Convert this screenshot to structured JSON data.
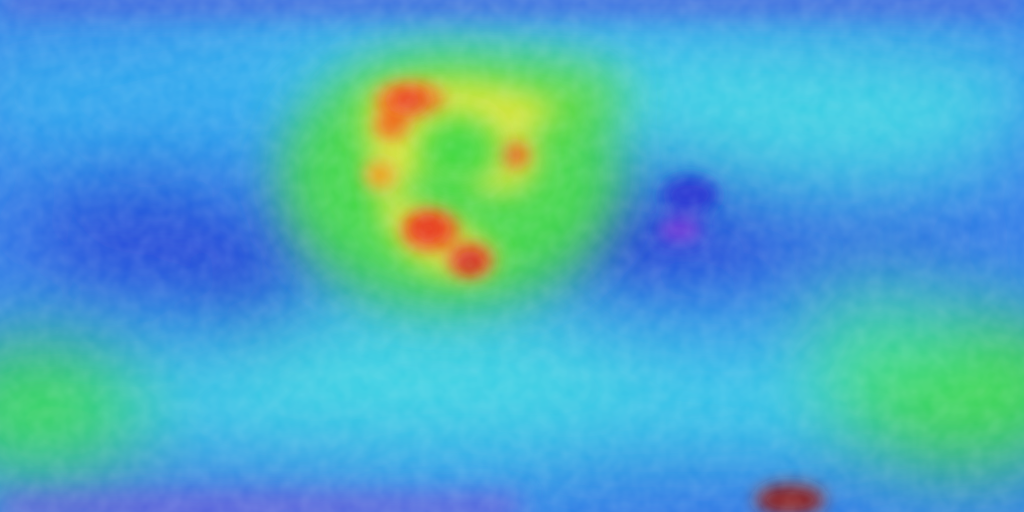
{
  "map": {
    "projection": "equirectangular",
    "colormap": "rainbow",
    "palette": {
      "violet": "#5a2bd8",
      "deep_blue": "#1a2fd6",
      "blue": "#2a6fe6",
      "light_blue": "#2aa9ee",
      "cyan": "#33d6e6",
      "green": "#3fdc3a",
      "yellow": "#e8e83a",
      "orange": "#f08a1a",
      "red": "#e8321a",
      "dark_red": "#8a1a1a"
    },
    "regions": [
      {
        "id": "equatorial-blue-band",
        "level": "blue"
      },
      {
        "id": "northern-cyan-belt",
        "level": "cyan"
      },
      {
        "id": "southern-cyan-belt",
        "level": "cyan"
      },
      {
        "id": "central-high-anomaly",
        "level": "red"
      },
      {
        "id": "eastern-low-basin",
        "level": "deep_blue"
      },
      {
        "id": "western-low-basin",
        "level": "deep_blue"
      },
      {
        "id": "southwest-green-patch",
        "level": "green"
      },
      {
        "id": "southeast-green-patch",
        "level": "green"
      },
      {
        "id": "south-pole-dark-spot",
        "level": "dark_red"
      }
    ]
  }
}
